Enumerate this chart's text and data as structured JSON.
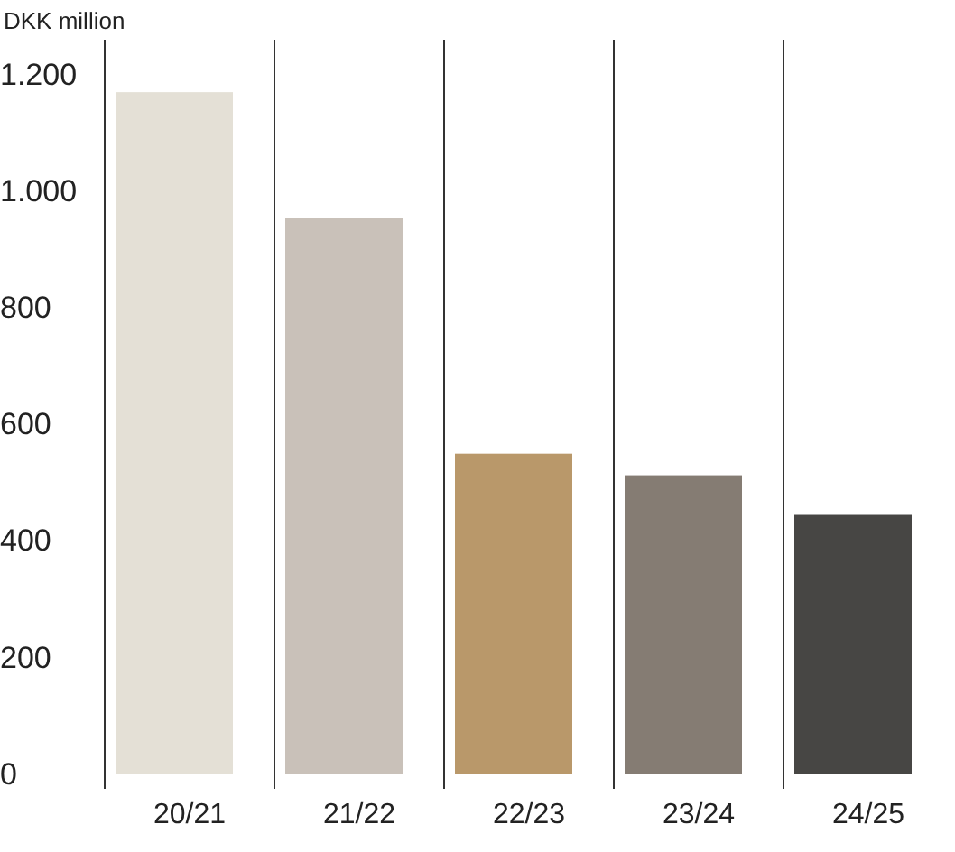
{
  "chart_data": {
    "type": "bar",
    "ylabel": "DKK million",
    "categories": [
      "20/21",
      "21/22",
      "22/23",
      "23/24",
      "24/25"
    ],
    "values": [
      1170,
      955,
      550,
      513,
      445
    ],
    "colors": [
      "#e4e0d6",
      "#c9c1b9",
      "#b9986a",
      "#857c73",
      "#474644"
    ],
    "ylim": [
      0,
      1260
    ],
    "yticks": [
      0,
      200,
      400,
      600,
      800,
      {
        "value": 1000,
        "label": "1.000"
      },
      {
        "value": 1200,
        "label": "1.200"
      }
    ],
    "grid": "x"
  }
}
